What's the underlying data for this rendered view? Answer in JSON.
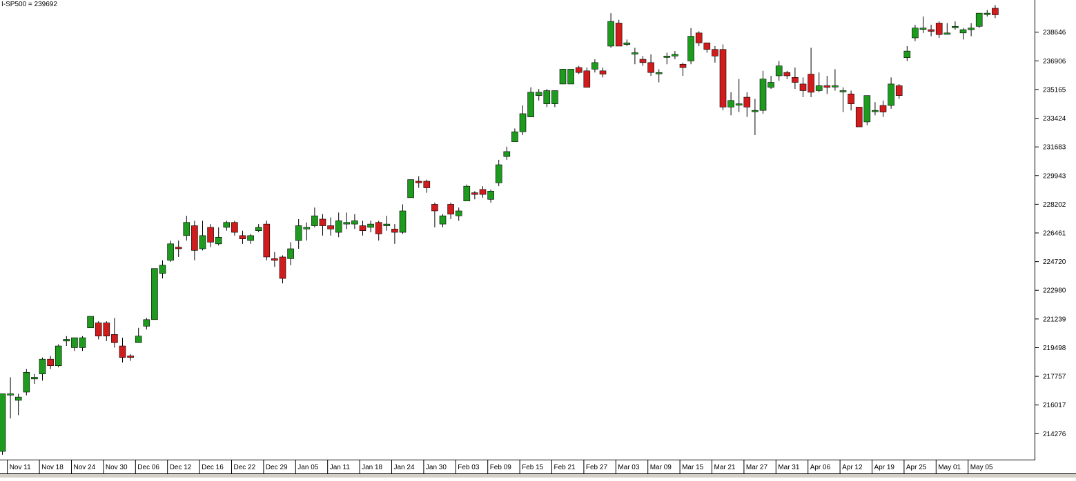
{
  "header": {
    "label": "I-SP500 = 239692"
  },
  "chart_data": {
    "type": "candlestick",
    "title": "I-SP500 = 239692",
    "ylim": [
      212700,
      240600
    ],
    "y_ticks": [
      214276,
      216017,
      217757,
      219498,
      221239,
      222980,
      224720,
      226461,
      228202,
      229943,
      231683,
      233424,
      235165,
      236906,
      238646
    ],
    "x_date_labels": [
      {
        "label": "Nov 11",
        "index": 2
      },
      {
        "label": "Nov 18",
        "index": 6
      },
      {
        "label": "Nov 24",
        "index": 10
      },
      {
        "label": "Nov 30",
        "index": 14
      },
      {
        "label": "Dec 06",
        "index": 18
      },
      {
        "label": "Dec 12",
        "index": 22
      },
      {
        "label": "Dec 16",
        "index": 26
      },
      {
        "label": "Dec 22",
        "index": 30
      },
      {
        "label": "Dec 29",
        "index": 34
      },
      {
        "label": "Jan 05",
        "index": 38
      },
      {
        "label": "Jan 11",
        "index": 42
      },
      {
        "label": "Jan 18",
        "index": 46
      },
      {
        "label": "Jan 24",
        "index": 50
      },
      {
        "label": "Jan 30",
        "index": 54
      },
      {
        "label": "Feb 03",
        "index": 58
      },
      {
        "label": "Feb 09",
        "index": 62
      },
      {
        "label": "Feb 15",
        "index": 66
      },
      {
        "label": "Feb 21",
        "index": 70
      },
      {
        "label": "Feb 27",
        "index": 74
      },
      {
        "label": "Mar 03",
        "index": 78
      },
      {
        "label": "Mar 09",
        "index": 82
      },
      {
        "label": "Mar 15",
        "index": 86
      },
      {
        "label": "Mar 21",
        "index": 90
      },
      {
        "label": "Mar 27",
        "index": 94
      },
      {
        "label": "Mar 31",
        "index": 98
      },
      {
        "label": "Apr 06",
        "index": 102
      },
      {
        "label": "Apr 12",
        "index": 106
      },
      {
        "label": "Apr 19",
        "index": 110
      },
      {
        "label": "Apr 25",
        "index": 114
      },
      {
        "label": "May 01",
        "index": 118
      },
      {
        "label": "May 05",
        "index": 122
      }
    ],
    "candles": [
      [
        213200,
        216700,
        213000,
        216700
      ],
      [
        216700,
        216700,
        215200,
        217700
      ],
      [
        216300,
        216500,
        215400,
        216700
      ],
      [
        216800,
        218000,
        216600,
        218200
      ],
      [
        217600,
        217700,
        217300,
        217900
      ],
      [
        217900,
        218800,
        217500,
        218900
      ],
      [
        218800,
        218400,
        218200,
        219000
      ],
      [
        218400,
        219600,
        218300,
        219700
      ],
      [
        219900,
        220000,
        219600,
        220200
      ],
      [
        219500,
        220100,
        219300,
        220100
      ],
      [
        219500,
        220100,
        219300,
        220200
      ],
      [
        220700,
        221400,
        220700,
        221400
      ],
      [
        221000,
        220200,
        220000,
        221100
      ],
      [
        221000,
        220200,
        219900,
        221100
      ],
      [
        220300,
        219800,
        219500,
        221300
      ],
      [
        219600,
        218900,
        218600,
        220100
      ],
      [
        219000,
        218900,
        218700,
        219100
      ],
      [
        219800,
        220200,
        219800,
        220700
      ],
      [
        220800,
        221200,
        220600,
        221300
      ],
      [
        221200,
        224300,
        221200,
        224300
      ],
      [
        224000,
        224500,
        223700,
        224800
      ],
      [
        224800,
        225800,
        224700,
        226000
      ],
      [
        225600,
        225500,
        225000,
        226000
      ],
      [
        226300,
        227100,
        226000,
        227500
      ],
      [
        226900,
        225400,
        224800,
        227200
      ],
      [
        225500,
        226300,
        225400,
        227200
      ],
      [
        226800,
        225900,
        225600,
        227000
      ],
      [
        225800,
        226200,
        225700,
        226800
      ],
      [
        226800,
        227100,
        226600,
        227200
      ],
      [
        227100,
        226500,
        226300,
        227200
      ],
      [
        226300,
        226100,
        225800,
        226600
      ],
      [
        226000,
        226300,
        225800,
        226400
      ],
      [
        226600,
        226800,
        226500,
        227000
      ],
      [
        227000,
        225000,
        224800,
        227200
      ],
      [
        224900,
        224800,
        224400,
        225300
      ],
      [
        225000,
        223700,
        223400,
        225100
      ],
      [
        224900,
        225500,
        224500,
        225900
      ],
      [
        226000,
        226900,
        225500,
        227300
      ],
      [
        226700,
        226800,
        226000,
        227100
      ],
      [
        226900,
        227500,
        226800,
        228000
      ],
      [
        227300,
        226900,
        226300,
        227600
      ],
      [
        226900,
        226700,
        226300,
        227400
      ],
      [
        226500,
        227200,
        226200,
        227700
      ],
      [
        227000,
        227100,
        226700,
        227700
      ],
      [
        227000,
        227200,
        226700,
        227600
      ],
      [
        226900,
        226600,
        226300,
        227200
      ],
      [
        226800,
        227000,
        226500,
        227200
      ],
      [
        227100,
        226400,
        226000,
        227200
      ],
      [
        226900,
        227000,
        226600,
        227500
      ],
      [
        226700,
        226500,
        225800,
        227000
      ],
      [
        226500,
        227800,
        226400,
        228200
      ],
      [
        228600,
        229700,
        228600,
        229700
      ],
      [
        229600,
        229500,
        229200,
        229900
      ],
      [
        229600,
        229200,
        228900,
        229700
      ],
      [
        228200,
        227800,
        226800,
        228300
      ],
      [
        227000,
        227500,
        226800,
        227600
      ],
      [
        228200,
        227600,
        227300,
        228300
      ],
      [
        227500,
        227800,
        227200,
        228000
      ],
      [
        228400,
        229300,
        228400,
        229400
      ],
      [
        228900,
        228800,
        228500,
        229000
      ],
      [
        229100,
        228800,
        228600,
        229300
      ],
      [
        228500,
        229000,
        228300,
        229100
      ],
      [
        229500,
        230600,
        229300,
        230900
      ],
      [
        231100,
        231400,
        230900,
        231700
      ],
      [
        232000,
        232600,
        232000,
        232800
      ],
      [
        232600,
        233700,
        232400,
        234200
      ],
      [
        233500,
        235000,
        233500,
        235300
      ],
      [
        234800,
        235000,
        234500,
        235200
      ],
      [
        234300,
        235100,
        234100,
        235200
      ],
      [
        234300,
        235100,
        234100,
        235100
      ],
      [
        235500,
        236400,
        235500,
        236400
      ],
      [
        235500,
        236400,
        235500,
        236400
      ],
      [
        236500,
        236200,
        236100,
        236600
      ],
      [
        236300,
        235300,
        235300,
        236500
      ],
      [
        236400,
        236800,
        236200,
        237000
      ],
      [
        236300,
        236100,
        235900,
        236500
      ],
      [
        237800,
        239300,
        237700,
        239800
      ],
      [
        239200,
        237800,
        237800,
        239400
      ],
      [
        237900,
        238000,
        237800,
        238200
      ],
      [
        237400,
        237400,
        236700,
        237700
      ],
      [
        237000,
        236800,
        236600,
        237200
      ],
      [
        236800,
        236200,
        236000,
        237300
      ],
      [
        236200,
        236200,
        235600,
        236400
      ],
      [
        237200,
        237200,
        236700,
        237400
      ],
      [
        237200,
        237300,
        237000,
        237500
      ],
      [
        236700,
        236500,
        236000,
        236800
      ],
      [
        236900,
        238400,
        236700,
        238900
      ],
      [
        238600,
        238000,
        237800,
        238700
      ],
      [
        238000,
        237600,
        237400,
        238000
      ],
      [
        237600,
        237200,
        236800,
        237800
      ],
      [
        237600,
        234100,
        233900,
        237900
      ],
      [
        234100,
        234500,
        233600,
        235000
      ],
      [
        234300,
        234300,
        233800,
        235800
      ],
      [
        234700,
        234100,
        233500,
        235000
      ],
      [
        233900,
        233900,
        232400,
        234600
      ],
      [
        233900,
        235800,
        233700,
        236300
      ],
      [
        235300,
        235600,
        235200,
        236000
      ],
      [
        236000,
        236600,
        235700,
        236900
      ],
      [
        236200,
        236000,
        235800,
        236300
      ],
      [
        235900,
        235600,
        235200,
        236500
      ],
      [
        235500,
        235100,
        234700,
        235900
      ],
      [
        236100,
        235000,
        234700,
        237700
      ],
      [
        235100,
        235400,
        235000,
        236200
      ],
      [
        235400,
        235300,
        234900,
        236000
      ],
      [
        235400,
        235400,
        235100,
        236400
      ],
      [
        235100,
        235100,
        233800,
        235300
      ],
      [
        234900,
        234300,
        233900,
        235100
      ],
      [
        234100,
        232900,
        232900,
        234100
      ],
      [
        233200,
        234800,
        233000,
        234800
      ],
      [
        233900,
        233900,
        233600,
        234400
      ],
      [
        234200,
        233800,
        233500,
        234500
      ],
      [
        234200,
        235500,
        234000,
        235900
      ],
      [
        235400,
        234800,
        234600,
        235500
      ],
      [
        237100,
        237500,
        236900,
        237800
      ],
      [
        238300,
        238900,
        238100,
        239100
      ],
      [
        238900,
        238900,
        238600,
        239600
      ],
      [
        238800,
        238700,
        238400,
        239100
      ],
      [
        239200,
        238500,
        238300,
        239300
      ],
      [
        238600,
        238600,
        238500,
        239200
      ],
      [
        239000,
        239000,
        238800,
        239300
      ],
      [
        238600,
        238800,
        238200,
        238900
      ],
      [
        238800,
        238900,
        238400,
        239200
      ],
      [
        239000,
        239800,
        238900,
        239800
      ],
      [
        239800,
        239800,
        239600,
        240000
      ],
      [
        240100,
        239700,
        239500,
        240300
      ]
    ],
    "colors": {
      "up": "#1e9a1e",
      "down": "#d01c1c",
      "border": "#000000",
      "axis": "#000000",
      "background": "#ffffff"
    }
  }
}
